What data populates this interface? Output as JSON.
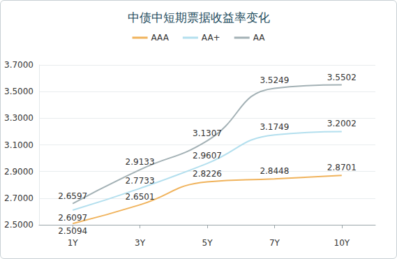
{
  "chart_data": {
    "type": "line",
    "title": "中债中短期票据收益率变化",
    "categories": [
      "1Y",
      "3Y",
      "5Y",
      "7Y",
      "10Y"
    ],
    "series": [
      {
        "name": "AAA",
        "color": "#f0b35c",
        "values": [
          2.5094,
          2.6501,
          2.8226,
          2.8448,
          2.8701
        ]
      },
      {
        "name": "AA+",
        "color": "#b3dfee",
        "values": [
          2.6097,
          2.7733,
          2.9607,
          3.1749,
          3.2002
        ]
      },
      {
        "name": "AA",
        "color": "#a3b1b5",
        "values": [
          2.6597,
          2.9133,
          3.1307,
          3.5249,
          3.5502
        ]
      }
    ],
    "ylim": [
      2.5,
      3.7
    ],
    "yticks": [
      {
        "value": 2.5,
        "label": "2.5000"
      },
      {
        "value": 2.7,
        "label": "2.7000"
      },
      {
        "value": 2.9,
        "label": "2.9000"
      },
      {
        "value": 3.1,
        "label": "3.1000"
      },
      {
        "value": 3.3,
        "label": "3.3000"
      },
      {
        "value": 3.5,
        "label": "3.5000"
      },
      {
        "value": 3.7,
        "label": "3.7000"
      }
    ],
    "grid": true,
    "legend": "top",
    "data_labels": true,
    "marker": "none",
    "line_style": "smooth"
  }
}
